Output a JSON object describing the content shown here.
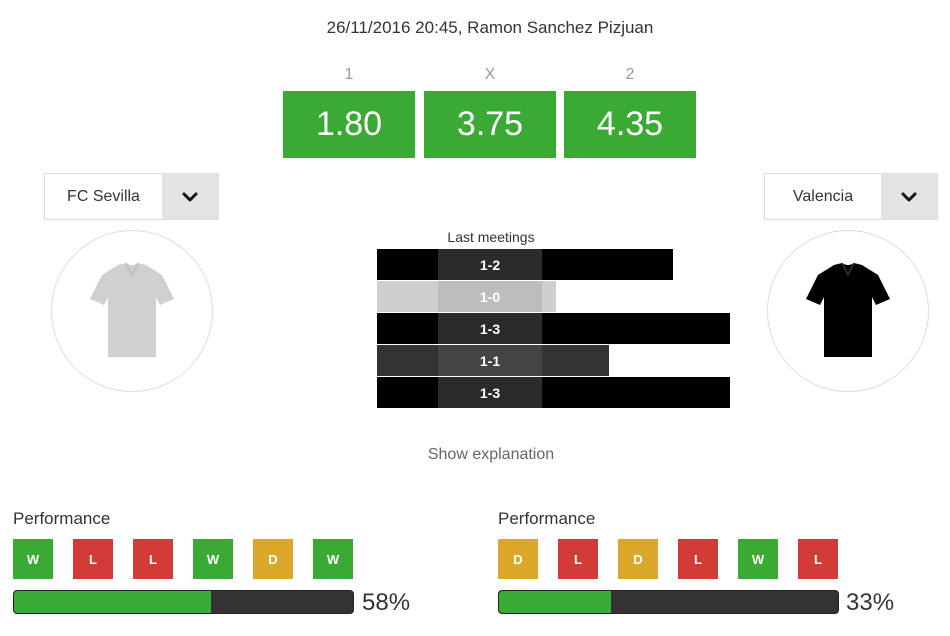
{
  "match": {
    "info": "26/11/2016 20:45, Ramon Sanchez Pizjuan"
  },
  "odds": [
    {
      "label": "1",
      "value": "1.80"
    },
    {
      "label": "X",
      "value": "3.75"
    },
    {
      "label": "2",
      "value": "4.35"
    }
  ],
  "home": {
    "name": "FC Sevilla",
    "jersey_color": "#d0d0d0",
    "performance_title": "Performance",
    "form": [
      "W",
      "L",
      "L",
      "W",
      "D",
      "W"
    ],
    "performance_value": 0.58,
    "performance_pct": "58%"
  },
  "away": {
    "name": "Valencia",
    "jersey_color": "#000000",
    "performance_title": "Performance",
    "form": [
      "D",
      "L",
      "D",
      "L",
      "W",
      "L"
    ],
    "performance_value": 0.33,
    "performance_pct": "33%"
  },
  "last_meetings": {
    "title": "Last meetings",
    "items": [
      {
        "score": "1-2",
        "bar_color": "#000000"
      },
      {
        "score": "1-0",
        "bar_color": "#cfcfcf"
      },
      {
        "score": "1-3",
        "bar_color": "#000000"
      },
      {
        "score": "1-1",
        "bar_color": "#333333"
      },
      {
        "score": "1-3",
        "bar_color": "#000000"
      }
    ]
  },
  "show_explanation": "Show explanation",
  "colors": {
    "win": "#3aaa35",
    "loss": "#d23b36",
    "draw": "#dba82c",
    "odds_bg": "#3aaa35"
  }
}
